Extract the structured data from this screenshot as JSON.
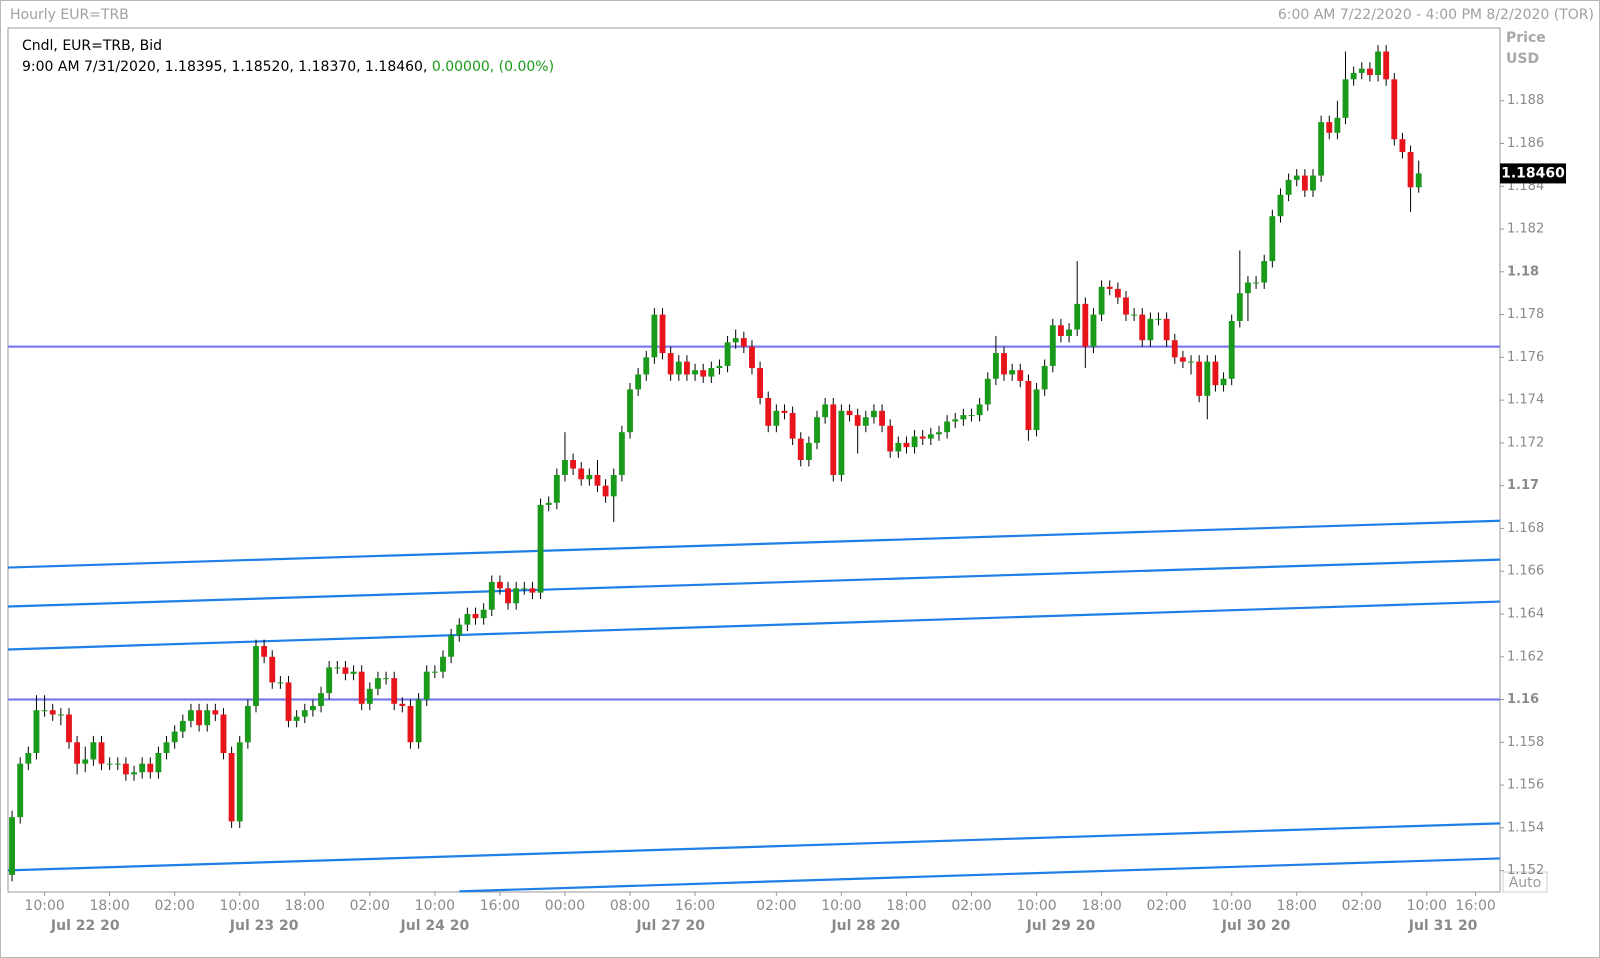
{
  "chart_data": {
    "type": "candlestick",
    "title": "Hourly EUR=TRB",
    "range_text": "6:00 AM 7/22/2020 - 4:00 PM 8/2/2020 (TOR)",
    "legend_title": "Cndl, EUR=TRB, Bid",
    "legend_values": "9:00 AM 7/31/2020, 1.18395, 1.18520, 1.18370, 1.18460,",
    "legend_change": "0.00000, (0.00%)",
    "axis_title": "Price",
    "axis_unit": "USD",
    "scale_mode": "Auto",
    "up_color": "#1a9a1a",
    "down_color": "#e8141b",
    "last_price": {
      "value": 1.1846,
      "label": "1.18460"
    },
    "open": [
      1.1518,
      1.1545,
      1.157,
      1.1575,
      1.1595,
      1.1595,
      1.1593,
      1.1593,
      1.158,
      1.157,
      1.1572,
      1.158,
      1.157,
      1.157,
      1.157,
      1.1565,
      1.1566,
      1.157,
      1.1566,
      1.1575,
      1.158,
      1.1585,
      1.159,
      1.1595,
      1.1588,
      1.1595,
      1.1593,
      1.1575,
      1.1543,
      1.158,
      1.1597,
      1.1625,
      1.162,
      1.1608,
      1.1608,
      1.159,
      1.1592,
      1.1595,
      1.1597,
      1.1603,
      1.1615,
      1.1615,
      1.1612,
      1.1613,
      1.1598,
      1.1605,
      1.161,
      1.161,
      1.1598,
      1.1597,
      1.158,
      1.16,
      1.1613,
      1.1613,
      1.162,
      1.163,
      1.1635,
      1.164,
      1.1638,
      1.1642,
      1.1655,
      1.1652,
      1.1645,
      1.1652,
      1.1652,
      1.165,
      1.1691,
      1.1692,
      1.1705,
      1.1712,
      1.1708,
      1.1703,
      1.1705,
      1.17,
      1.1695,
      1.1705,
      1.1725,
      1.1745,
      1.1752,
      1.176,
      1.178,
      1.1762,
      1.1752,
      1.1758,
      1.1752,
      1.1754,
      1.1751,
      1.1755,
      1.1756,
      1.1767,
      1.1769,
      1.1765,
      1.1755,
      1.1741,
      1.1728,
      1.1735,
      1.1734,
      1.1722,
      1.1712,
      1.172,
      1.1732,
      1.1738,
      1.1705,
      1.1735,
      1.1733,
      1.1728,
      1.1732,
      1.1735,
      1.1728,
      1.1716,
      1.172,
      1.1718,
      1.1723,
      1.1722,
      1.1724,
      1.1725,
      1.173,
      1.1731,
      1.1733,
      1.1733,
      1.1738,
      1.175,
      1.1762,
      1.1752,
      1.1754,
      1.1749,
      1.1726,
      1.1745,
      1.1756,
      1.1775,
      1.177,
      1.1773,
      1.1785,
      1.1765,
      1.178,
      1.1793,
      1.1792,
      1.1788,
      1.178,
      1.178,
      1.1768,
      1.1778,
      1.1778,
      1.1768,
      1.176,
      1.1758,
      1.1758,
      1.1742,
      1.1758,
      1.1747,
      1.175,
      1.1777,
      1.179,
      1.1795,
      1.1795,
      1.1805,
      1.1826,
      1.1836,
      1.1843,
      1.1845,
      1.1838,
      1.1845,
      1.187,
      1.1865,
      1.1872,
      1.189,
      1.1893,
      1.1895,
      1.1892,
      1.1903,
      1.189,
      1.1862,
      1.1856,
      1.18395
    ],
    "high": [
      1.1548,
      1.1573,
      1.1578,
      1.1602,
      1.1602,
      1.1598,
      1.1596,
      1.1596,
      1.1583,
      1.1578,
      1.1583,
      1.1583,
      1.1573,
      1.1573,
      1.1573,
      1.1569,
      1.1573,
      1.1573,
      1.1578,
      1.1583,
      1.1588,
      1.1593,
      1.1598,
      1.1598,
      1.1598,
      1.1598,
      1.1596,
      1.1578,
      1.1583,
      1.16,
      1.1628,
      1.1628,
      1.1623,
      1.1611,
      1.1611,
      1.1595,
      1.1598,
      1.16,
      1.1606,
      1.1618,
      1.1618,
      1.1618,
      1.1616,
      1.1616,
      1.1608,
      1.1613,
      1.1613,
      1.1613,
      1.1601,
      1.16,
      1.1603,
      1.1616,
      1.1616,
      1.1623,
      1.1633,
      1.1638,
      1.1643,
      1.1643,
      1.1645,
      1.1658,
      1.1658,
      1.1655,
      1.1655,
      1.1655,
      1.1655,
      1.1694,
      1.1695,
      1.1708,
      1.1725,
      1.1715,
      1.1711,
      1.1708,
      1.1712,
      1.1703,
      1.1708,
      1.1728,
      1.1748,
      1.1755,
      1.1763,
      1.1783,
      1.1783,
      1.1765,
      1.1761,
      1.1761,
      1.1757,
      1.1757,
      1.1758,
      1.1759,
      1.177,
      1.1773,
      1.1772,
      1.1768,
      1.1758,
      1.1744,
      1.1738,
      1.1738,
      1.1737,
      1.1725,
      1.1723,
      1.1735,
      1.1741,
      1.1741,
      1.1738,
      1.1738,
      1.1736,
      1.1735,
      1.1738,
      1.1738,
      1.1731,
      1.1723,
      1.1723,
      1.1726,
      1.1726,
      1.1727,
      1.1728,
      1.1733,
      1.1734,
      1.1736,
      1.1736,
      1.1741,
      1.1753,
      1.177,
      1.1765,
      1.1757,
      1.1757,
      1.1752,
      1.1748,
      1.1759,
      1.1778,
      1.1778,
      1.1776,
      1.1805,
      1.1788,
      1.1783,
      1.1796,
      1.1796,
      1.1795,
      1.1791,
      1.1783,
      1.1783,
      1.1781,
      1.1781,
      1.1781,
      1.1771,
      1.1763,
      1.1761,
      1.1761,
      1.1761,
      1.1761,
      1.1753,
      1.178,
      1.181,
      1.1798,
      1.1798,
      1.1808,
      1.1829,
      1.1839,
      1.1846,
      1.1848,
      1.1848,
      1.1848,
      1.1873,
      1.1873,
      1.188,
      1.1903,
      1.1896,
      1.1898,
      1.1898,
      1.1906,
      1.1906,
      1.1893,
      1.1865,
      1.1859,
      1.1852
    ],
    "low": [
      1.1515,
      1.1542,
      1.1567,
      1.1572,
      1.1592,
      1.159,
      1.1588,
      1.1577,
      1.1565,
      1.1566,
      1.1569,
      1.1567,
      1.1567,
      1.1567,
      1.1562,
      1.1562,
      1.1563,
      1.1563,
      1.1563,
      1.1572,
      1.1577,
      1.1582,
      1.1587,
      1.1585,
      1.1585,
      1.159,
      1.1572,
      1.154,
      1.154,
      1.1577,
      1.1594,
      1.1617,
      1.1605,
      1.1605,
      1.1587,
      1.1587,
      1.1589,
      1.1592,
      1.1594,
      1.16,
      1.1612,
      1.1609,
      1.1609,
      1.1595,
      1.1595,
      1.1602,
      1.1607,
      1.1595,
      1.1594,
      1.1577,
      1.1577,
      1.1597,
      1.161,
      1.161,
      1.1617,
      1.1627,
      1.1632,
      1.1635,
      1.1635,
      1.1639,
      1.1649,
      1.1642,
      1.1642,
      1.1649,
      1.1647,
      1.1647,
      1.1688,
      1.1689,
      1.1702,
      1.1705,
      1.17,
      1.17,
      1.1697,
      1.1692,
      1.1683,
      1.1702,
      1.1722,
      1.1742,
      1.1749,
      1.1757,
      1.1759,
      1.1749,
      1.1749,
      1.1749,
      1.1749,
      1.1748,
      1.1748,
      1.1752,
      1.1753,
      1.1764,
      1.1762,
      1.1752,
      1.1738,
      1.1725,
      1.1725,
      1.1731,
      1.1719,
      1.1709,
      1.1709,
      1.1717,
      1.1729,
      1.1702,
      1.1702,
      1.173,
      1.1715,
      1.1725,
      1.1729,
      1.1725,
      1.1713,
      1.1713,
      1.1715,
      1.1715,
      1.1719,
      1.1719,
      1.1721,
      1.1722,
      1.1727,
      1.1728,
      1.173,
      1.173,
      1.1735,
      1.1747,
      1.1749,
      1.1749,
      1.1746,
      1.1721,
      1.1723,
      1.1742,
      1.1753,
      1.1767,
      1.1767,
      1.177,
      1.1755,
      1.1762,
      1.1777,
      1.1789,
      1.1785,
      1.1777,
      1.1777,
      1.1765,
      1.1765,
      1.1775,
      1.1765,
      1.1757,
      1.1755,
      1.1752,
      1.1739,
      1.1731,
      1.1744,
      1.1744,
      1.1747,
      1.1774,
      1.1777,
      1.1792,
      1.1792,
      1.1802,
      1.1823,
      1.1833,
      1.184,
      1.1835,
      1.1835,
      1.1842,
      1.1862,
      1.1862,
      1.1869,
      1.1887,
      1.189,
      1.1889,
      1.1889,
      1.1887,
      1.1859,
      1.1853,
      1.1828,
      1.1837
    ],
    "close": [
      1.1545,
      1.157,
      1.1575,
      1.1595,
      1.1595,
      1.1593,
      1.1593,
      1.158,
      1.157,
      1.1572,
      1.158,
      1.157,
      1.157,
      1.157,
      1.1565,
      1.1566,
      1.157,
      1.1566,
      1.1575,
      1.158,
      1.1585,
      1.159,
      1.1595,
      1.1588,
      1.1595,
      1.1593,
      1.1575,
      1.1543,
      1.158,
      1.1597,
      1.1625,
      1.162,
      1.1608,
      1.1608,
      1.159,
      1.1592,
      1.1595,
      1.1597,
      1.1603,
      1.1615,
      1.1615,
      1.1612,
      1.1613,
      1.1598,
      1.1605,
      1.161,
      1.161,
      1.1598,
      1.1597,
      1.158,
      1.16,
      1.1613,
      1.1613,
      1.162,
      1.163,
      1.1635,
      1.164,
      1.1638,
      1.1642,
      1.1655,
      1.1652,
      1.1645,
      1.1652,
      1.1652,
      1.165,
      1.1691,
      1.1692,
      1.1705,
      1.1712,
      1.1708,
      1.1703,
      1.1705,
      1.17,
      1.1695,
      1.1705,
      1.1725,
      1.1745,
      1.1752,
      1.176,
      1.178,
      1.1762,
      1.1752,
      1.1758,
      1.1752,
      1.1754,
      1.1751,
      1.1755,
      1.1756,
      1.1767,
      1.1769,
      1.1765,
      1.1755,
      1.1741,
      1.1728,
      1.1735,
      1.1734,
      1.1722,
      1.1712,
      1.172,
      1.1732,
      1.1738,
      1.1705,
      1.1735,
      1.1733,
      1.1728,
      1.1732,
      1.1735,
      1.1728,
      1.1716,
      1.172,
      1.1718,
      1.1723,
      1.1722,
      1.1724,
      1.1725,
      1.173,
      1.1731,
      1.1733,
      1.1733,
      1.1738,
      1.175,
      1.1762,
      1.1752,
      1.1754,
      1.1749,
      1.1726,
      1.1745,
      1.1756,
      1.1775,
      1.177,
      1.1773,
      1.1785,
      1.1765,
      1.178,
      1.1793,
      1.1792,
      1.1788,
      1.178,
      1.178,
      1.1768,
      1.1778,
      1.1778,
      1.1768,
      1.176,
      1.1758,
      1.1758,
      1.1742,
      1.1758,
      1.1747,
      1.175,
      1.1777,
      1.179,
      1.1795,
      1.1795,
      1.1805,
      1.1826,
      1.1836,
      1.1843,
      1.1845,
      1.1838,
      1.1845,
      1.187,
      1.1865,
      1.1872,
      1.189,
      1.1893,
      1.1895,
      1.1892,
      1.1903,
      1.189,
      1.1862,
      1.1856,
      1.18395,
      1.1846
    ],
    "xlim": [
      -0.5,
      183
    ],
    "ylim": [
      1.151,
      1.1914
    ],
    "yticks": [
      1.152,
      1.154,
      1.156,
      1.158,
      1.16,
      1.162,
      1.164,
      1.166,
      1.168,
      1.17,
      1.172,
      1.174,
      1.176,
      1.178,
      1.18,
      1.182,
      1.184,
      1.186,
      1.188
    ],
    "xticks": [
      {
        "value": 4,
        "label": "10:00"
      },
      {
        "value": 12,
        "label": "18:00"
      },
      {
        "value": 20,
        "label": "02:00"
      },
      {
        "value": 28,
        "label": "10:00"
      },
      {
        "value": 36,
        "label": "18:00"
      },
      {
        "value": 44,
        "label": "02:00"
      },
      {
        "value": 52,
        "label": "10:00"
      },
      {
        "value": 60,
        "label": "16:00"
      },
      {
        "value": 68,
        "label": "00:00"
      },
      {
        "value": 76,
        "label": "08:00"
      },
      {
        "value": 84,
        "label": "16:00"
      },
      {
        "value": 94,
        "label": "02:00"
      },
      {
        "value": 102,
        "label": "10:00"
      },
      {
        "value": 110,
        "label": "18:00"
      },
      {
        "value": 118,
        "label": "02:00"
      },
      {
        "value": 126,
        "label": "10:00"
      },
      {
        "value": 134,
        "label": "18:00"
      },
      {
        "value": 142,
        "label": "02:00"
      },
      {
        "value": 150,
        "label": "10:00"
      },
      {
        "value": 158,
        "label": "18:00"
      },
      {
        "value": 166,
        "label": "02:00"
      },
      {
        "value": 174,
        "label": "10:00"
      },
      {
        "value": 180,
        "label": "16:00"
      }
    ],
    "date_ticks": [
      {
        "value": 9,
        "label": "Jul 22 20"
      },
      {
        "value": 31,
        "label": "Jul 23 20"
      },
      {
        "value": 52,
        "label": "Jul 24 20"
      },
      {
        "value": 81,
        "label": "Jul 27 20"
      },
      {
        "value": 105,
        "label": "Jul 28 20"
      },
      {
        "value": 129,
        "label": "Jul 29 20"
      },
      {
        "value": 153,
        "label": "Jul 30 20"
      },
      {
        "value": 176,
        "label": "Jul 31 20"
      }
    ],
    "lines": [
      {
        "color": "#7b7bf0",
        "x": [
          -0.5,
          183
        ],
        "y": [
          1.1765,
          1.1765
        ]
      },
      {
        "color": "#7b7bf0",
        "x": [
          -0.5,
          183
        ],
        "y": [
          1.16,
          1.16
        ]
      },
      {
        "color": "#1e7fe8",
        "x": [
          -0.5,
          183
        ],
        "y": [
          1.16617,
          1.16836
        ]
      },
      {
        "color": "#1e7fe8",
        "x": [
          -0.5,
          183
        ],
        "y": [
          1.16435,
          1.16654
        ]
      },
      {
        "color": "#1e7fe8",
        "x": [
          -0.5,
          183
        ],
        "y": [
          1.16234,
          1.16458
        ]
      },
      {
        "color": "#1e7fe8",
        "x": [
          -0.5,
          183
        ],
        "y": [
          1.15201,
          1.15421
        ]
      },
      {
        "color": "#1e7fe8",
        "x": [
          55,
          183
        ],
        "y": [
          1.15103,
          1.15257
        ]
      }
    ]
  }
}
